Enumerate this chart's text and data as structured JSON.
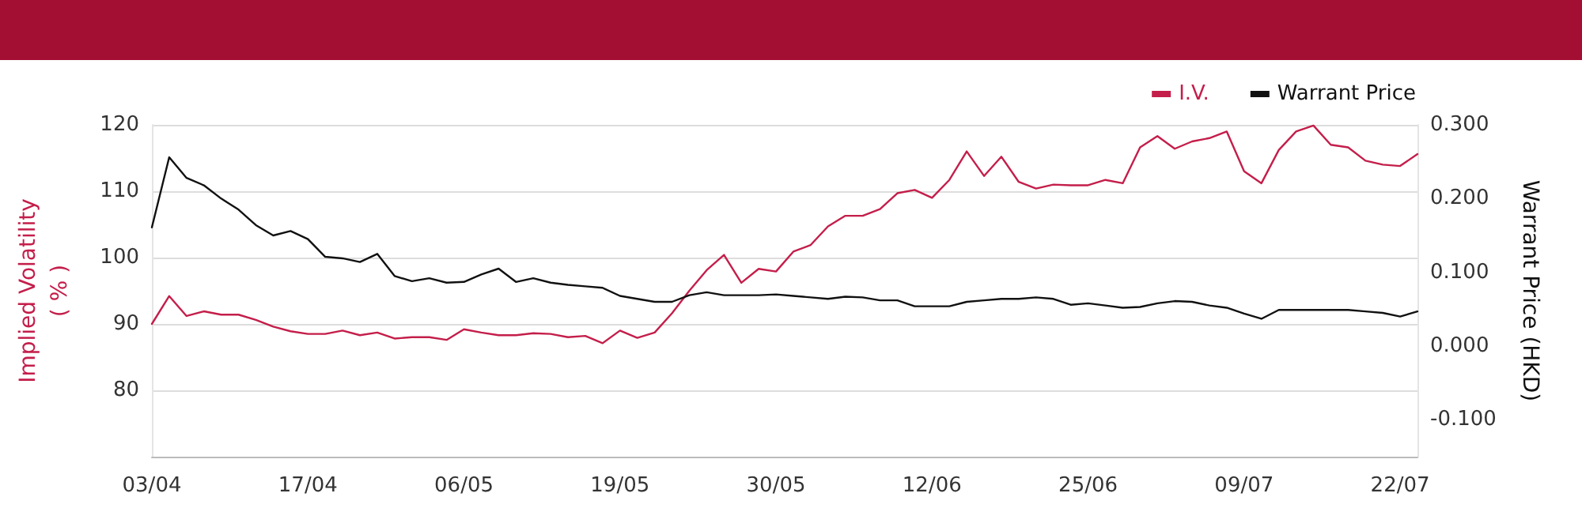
{
  "chart_data": {
    "type": "line",
    "ylabel": "Implied Volatility\n( % )",
    "y2label": "Warrant Price (HKD)",
    "categories": [
      "03/04",
      null,
      null,
      null,
      null,
      null,
      null,
      null,
      null,
      "17/04",
      null,
      null,
      null,
      null,
      null,
      null,
      null,
      null,
      "06/05",
      null,
      null,
      null,
      null,
      null,
      null,
      null,
      null,
      "19/05",
      null,
      null,
      null,
      null,
      null,
      null,
      null,
      null,
      "30/05",
      null,
      null,
      null,
      null,
      null,
      null,
      null,
      null,
      "12/06",
      null,
      null,
      null,
      null,
      null,
      null,
      null,
      null,
      "25/06",
      null,
      null,
      null,
      null,
      null,
      null,
      null,
      null,
      "09/07",
      null,
      null,
      null,
      null,
      null,
      null,
      null,
      null,
      "22/07",
      null
    ],
    "series": [
      {
        "name": "I.V.",
        "color": "#c41e4a",
        "values": [
          90,
          94.2,
          91.2,
          91.9,
          91.4,
          91.4,
          90.6,
          89.6,
          88.9,
          88.5,
          88.5,
          89.0,
          88.3,
          88.7,
          87.8,
          88.0,
          88.0,
          87.6,
          89.2,
          88.7,
          88.3,
          88.3,
          88.6,
          88.5,
          88.0,
          88.2,
          87.1,
          89.0,
          87.9,
          88.7,
          91.6,
          95.0,
          98.1,
          100.4,
          96.2,
          98.3,
          97.9,
          100.9,
          101.9,
          104.7,
          106.3,
          106.3,
          107.3,
          109.7,
          110.2,
          109.0,
          111.7,
          116.0,
          112.3,
          115.2,
          111.4,
          110.4,
          111.0,
          110.9,
          110.9,
          111.7,
          111.2,
          116.6,
          118.3,
          116.4,
          117.5,
          118.0,
          119.0,
          113.0,
          111.2,
          116.2,
          119.0,
          119.9,
          117.0,
          116.6,
          114.6,
          114.0,
          113.8,
          115.6
        ]
      },
      {
        "name": "Warrant Price",
        "color": "#111111",
        "axis": "y2",
        "values": [
          0.161,
          0.256,
          0.228,
          0.218,
          0.2,
          0.185,
          0.164,
          0.15,
          0.156,
          0.145,
          0.121,
          0.119,
          0.114,
          0.125,
          0.095,
          0.088,
          0.092,
          0.086,
          0.087,
          0.097,
          0.105,
          0.087,
          0.092,
          0.086,
          0.083,
          0.081,
          0.079,
          0.068,
          0.064,
          0.06,
          0.06,
          0.069,
          0.073,
          0.069,
          0.069,
          0.069,
          0.07,
          0.068,
          0.066,
          0.064,
          0.067,
          0.066,
          0.062,
          0.062,
          0.054,
          0.054,
          0.054,
          0.06,
          0.062,
          0.064,
          0.064,
          0.066,
          0.064,
          0.056,
          0.058,
          0.055,
          0.052,
          0.053,
          0.058,
          0.061,
          0.06,
          0.055,
          0.052,
          0.044,
          0.037,
          0.049,
          0.049,
          0.049,
          0.049,
          0.049,
          0.047,
          0.045,
          0.04,
          0.047
        ]
      }
    ],
    "ylim": [
      70,
      120
    ],
    "yticks": [
      80,
      90,
      100,
      110,
      120
    ],
    "y2lim": [
      -0.15,
      0.3
    ],
    "y2ticks": [
      {
        "value": -0.1,
        "label": "-0.100"
      },
      {
        "value": 0,
        "label": "0.000"
      },
      {
        "value": 0.1,
        "label": "0.100"
      },
      {
        "value": 0.2,
        "label": "0.200"
      },
      {
        "value": 0.3,
        "label": "0.300"
      }
    ],
    "grid": "y",
    "legend": "top right",
    "marker": "none",
    "line_style": "solid"
  }
}
